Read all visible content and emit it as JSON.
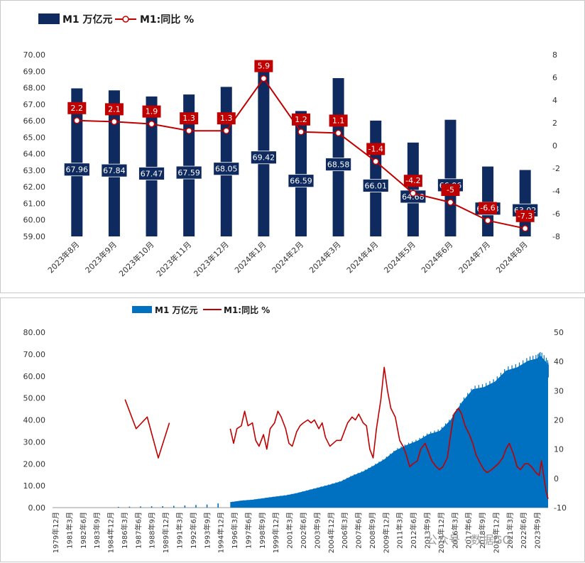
{
  "chart_data": [
    {
      "type": "bar",
      "legend": [
        "M1 万亿元",
        "M1:同比 %"
      ],
      "categories": [
        "2023年8月",
        "2023年9月",
        "2023年10月",
        "2023年11月",
        "2023年12月",
        "2024年1月",
        "2024年2月",
        "2024年3月",
        "2024年4月",
        "2024年5月",
        "2024年6月",
        "2024年7月",
        "2024年8月"
      ],
      "series": [
        {
          "name": "M1 万亿元",
          "kind": "bar",
          "axis": "left",
          "values": [
            67.96,
            67.84,
            67.47,
            67.59,
            68.05,
            69.42,
            66.59,
            68.58,
            66.01,
            64.68,
            66.06,
            63.23,
            63.02
          ],
          "labels": [
            "67.96",
            "67.84",
            "67.47",
            "67.59",
            "68.05",
            "69.42",
            "66.59",
            "68.58",
            "66.01",
            "64.68",
            "66.06",
            "63.23",
            "63.02"
          ]
        },
        {
          "name": "M1:同比 %",
          "kind": "line",
          "axis": "right",
          "values": [
            2.2,
            2.1,
            1.9,
            1.3,
            1.3,
            5.9,
            1.2,
            1.1,
            -1.4,
            -4.2,
            -5.0,
            -6.6,
            -7.3
          ],
          "labels": [
            "2.2",
            "2.1",
            "1.9",
            "1.3",
            "1.3",
            "5.9",
            "1.2",
            "1.1",
            "-1.4",
            "-4.2",
            "-5",
            "-6.6",
            "-7.3"
          ]
        }
      ],
      "ylim_left": [
        59,
        70
      ],
      "yticks_left": [
        "70.00",
        "69.00",
        "68.00",
        "67.00",
        "66.00",
        "65.00",
        "64.00",
        "63.00",
        "62.00",
        "61.00",
        "60.00",
        "59.00"
      ],
      "ylim_right": [
        -8,
        8
      ],
      "yticks_right": [
        "8",
        "6",
        "4",
        "2",
        "0",
        "-2",
        "-4",
        "-6",
        "-8"
      ],
      "legend_position": "top-left",
      "colors": {
        "bar": "#0e2a5f",
        "line": "#c00000",
        "label_box": "#c00000",
        "bar_label_box": "#0e2a5f"
      }
    },
    {
      "type": "area",
      "legend": [
        "M1 万亿元",
        "M1:同比 %"
      ],
      "x_range": [
        "1979年12月",
        "2024年8月"
      ],
      "x_tick_labels": [
        "1979年12月",
        "1981年3月",
        "1982年6月",
        "1983年9月",
        "1984年12月",
        "1986年3月",
        "1987年6月",
        "1988年9月",
        "1989年12月",
        "1991年3月",
        "1992年6月",
        "1993年9月",
        "1994年12月",
        "1996年3月",
        "1997年6月",
        "1998年9月",
        "1999年12月",
        "2001年3月",
        "2002年6月",
        "2003年9月",
        "2004年12月",
        "2006年3月",
        "2007年6月",
        "2008年9月",
        "2009年12月",
        "2011年3月",
        "2012年6月",
        "2013年9月",
        "2014年12月",
        "2016年3月",
        "2017年6月",
        "2018年9月",
        "2019年12月",
        "2021年3月",
        "2022年6月",
        "2023年9月"
      ],
      "ylim_left": [
        0,
        80
      ],
      "yticks_left": [
        "80.00",
        "70.00",
        "60.00",
        "50.00",
        "40.00",
        "30.00",
        "20.00",
        "10.00",
        "0.00"
      ],
      "ylim_right": [
        -10,
        50
      ],
      "yticks_right": [
        "50",
        "40",
        "30",
        "20",
        "10",
        "0",
        "-10"
      ],
      "m1_points": [
        [
          1985.9,
          0.35
        ],
        [
          1986.9,
          0.45
        ],
        [
          1987.9,
          0.55
        ],
        [
          1988.9,
          0.6
        ],
        [
          1989.9,
          0.65
        ],
        [
          1990.9,
          0.8
        ],
        [
          1991.9,
          1.0
        ],
        [
          1992.9,
          1.2
        ],
        [
          1993.9,
          1.4
        ],
        [
          1994.9,
          1.9
        ],
        [
          1996.0,
          2.5
        ],
        [
          1997.0,
          3.2
        ],
        [
          1998.0,
          3.6
        ],
        [
          1999.0,
          4.3
        ],
        [
          2000.0,
          5.0
        ],
        [
          2001.0,
          5.6
        ],
        [
          2002.0,
          6.6
        ],
        [
          2003.0,
          7.9
        ],
        [
          2004.0,
          9.2
        ],
        [
          2005.0,
          10.5
        ],
        [
          2006.0,
          12.0
        ],
        [
          2007.0,
          14.5
        ],
        [
          2008.0,
          16.5
        ],
        [
          2008.9,
          19.0
        ],
        [
          2009.9,
          22.0
        ],
        [
          2010.9,
          26.0
        ],
        [
          2011.9,
          28.5
        ],
        [
          2012.9,
          30.5
        ],
        [
          2013.9,
          33.5
        ],
        [
          2014.9,
          35.0
        ],
        [
          2015.9,
          40.0
        ],
        [
          2016.9,
          48.0
        ],
        [
          2017.9,
          54.0
        ],
        [
          2018.9,
          55.0
        ],
        [
          2019.9,
          57.5
        ],
        [
          2020.9,
          62.5
        ],
        [
          2021.9,
          64.0
        ],
        [
          2022.9,
          67.0
        ],
        [
          2023.7,
          68.0
        ],
        [
          2024.0,
          69.4
        ],
        [
          2024.6,
          66.0
        ],
        [
          2024.7,
          63.0
        ]
      ],
      "yoy_segments": [
        [
          [
            1986.5,
            27
          ],
          [
            1987.5,
            17
          ],
          [
            1988.5,
            21
          ],
          [
            1989.5,
            7
          ],
          [
            1990.5,
            19
          ]
        ],
        [
          [
            1996.0,
            17
          ],
          [
            1996.3,
            12
          ],
          [
            1996.6,
            17
          ],
          [
            1997.0,
            18
          ],
          [
            1997.3,
            23
          ],
          [
            1997.6,
            18
          ],
          [
            1998.0,
            19
          ],
          [
            1998.3,
            13
          ],
          [
            1998.6,
            11
          ],
          [
            1999.0,
            15
          ],
          [
            1999.3,
            10
          ],
          [
            1999.6,
            17
          ],
          [
            2000.0,
            19
          ],
          [
            2000.3,
            23
          ],
          [
            2000.6,
            21
          ],
          [
            2001.0,
            17
          ],
          [
            2001.3,
            12
          ],
          [
            2001.6,
            11
          ],
          [
            2002.0,
            16
          ],
          [
            2002.3,
            18
          ],
          [
            2002.6,
            19
          ],
          [
            2003.0,
            20
          ],
          [
            2003.3,
            19
          ],
          [
            2003.6,
            20
          ],
          [
            2004.0,
            17
          ],
          [
            2004.3,
            19
          ],
          [
            2004.6,
            14
          ],
          [
            2005.0,
            11
          ],
          [
            2005.3,
            12
          ],
          [
            2005.6,
            13
          ],
          [
            2006.0,
            13
          ],
          [
            2006.3,
            16
          ],
          [
            2006.6,
            19
          ],
          [
            2007.0,
            21
          ],
          [
            2007.3,
            20
          ],
          [
            2007.6,
            22
          ],
          [
            2008.0,
            19
          ],
          [
            2008.3,
            18
          ],
          [
            2008.6,
            10
          ],
          [
            2008.9,
            7
          ],
          [
            2009.2,
            17
          ],
          [
            2009.6,
            27
          ],
          [
            2009.9,
            38
          ],
          [
            2010.2,
            30
          ],
          [
            2010.5,
            24
          ],
          [
            2010.9,
            21
          ],
          [
            2011.3,
            13
          ],
          [
            2011.6,
            11
          ],
          [
            2011.9,
            8
          ],
          [
            2012.2,
            4
          ],
          [
            2012.5,
            5
          ],
          [
            2012.9,
            6
          ],
          [
            2013.2,
            10
          ],
          [
            2013.6,
            12
          ],
          [
            2013.9,
            9
          ],
          [
            2014.2,
            6
          ],
          [
            2014.6,
            4
          ],
          [
            2014.9,
            3
          ],
          [
            2015.2,
            4
          ],
          [
            2015.6,
            7
          ],
          [
            2015.9,
            15
          ],
          [
            2016.2,
            22
          ],
          [
            2016.6,
            24
          ],
          [
            2016.9,
            22
          ],
          [
            2017.2,
            18
          ],
          [
            2017.6,
            15
          ],
          [
            2017.9,
            12
          ],
          [
            2018.2,
            8
          ],
          [
            2018.6,
            5
          ],
          [
            2018.9,
            3
          ],
          [
            2019.2,
            2
          ],
          [
            2019.6,
            3
          ],
          [
            2019.9,
            4
          ],
          [
            2020.2,
            5
          ],
          [
            2020.6,
            7
          ],
          [
            2020.9,
            10
          ],
          [
            2021.2,
            12
          ],
          [
            2021.6,
            8
          ],
          [
            2021.9,
            4
          ],
          [
            2022.2,
            3
          ],
          [
            2022.6,
            5
          ],
          [
            2022.9,
            5
          ],
          [
            2023.2,
            4
          ],
          [
            2023.6,
            2
          ],
          [
            2023.9,
            1
          ],
          [
            2024.1,
            6
          ],
          [
            2024.3,
            1
          ],
          [
            2024.5,
            -4
          ],
          [
            2024.7,
            -7
          ]
        ]
      ],
      "colors": {
        "area": "#0070c0",
        "line": "#c00000"
      }
    }
  ],
  "watermark": "公众号 · 数据GO"
}
